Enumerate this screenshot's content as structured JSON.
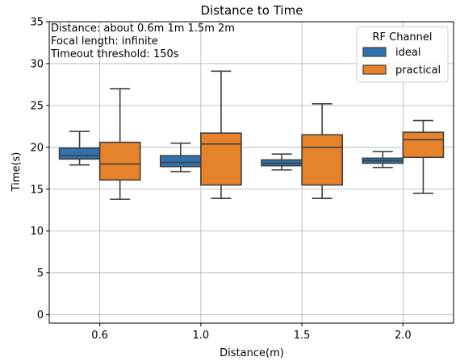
{
  "chart_data": {
    "type": "box",
    "title": "Distance to Time",
    "xlabel": "Distance(m)",
    "ylabel": "Time(s)",
    "categories": [
      "0.6",
      "1.0",
      "1.5",
      "2.0"
    ],
    "ylim": [
      -1,
      35
    ],
    "yticks": [
      0,
      5,
      10,
      15,
      20,
      25,
      30,
      35
    ],
    "grid": true,
    "annotations": [
      "Distance: about 0.6m 1m 1.5m 2m",
      "Focal length: infinite",
      "Timeout threshold: 150s"
    ],
    "legend": {
      "title": "RF Channel",
      "position": "top-right"
    },
    "series": [
      {
        "name": "ideal",
        "color": "#2f72ad",
        "boxes": [
          {
            "whisker_low": 17.9,
            "q1": 18.6,
            "median": 19.0,
            "q3": 19.9,
            "whisker_high": 21.9
          },
          {
            "whisker_low": 17.1,
            "q1": 17.7,
            "median": 18.2,
            "q3": 19.0,
            "whisker_high": 20.5
          },
          {
            "whisker_low": 17.3,
            "q1": 17.8,
            "median": 18.1,
            "q3": 18.5,
            "whisker_high": 19.2
          },
          {
            "whisker_low": 17.6,
            "q1": 18.1,
            "median": 18.4,
            "q3": 18.7,
            "whisker_high": 19.5
          }
        ]
      },
      {
        "name": "practical",
        "color": "#e6832a",
        "boxes": [
          {
            "whisker_low": 13.8,
            "q1": 16.1,
            "median": 18.0,
            "q3": 20.6,
            "whisker_high": 27.0
          },
          {
            "whisker_low": 13.9,
            "q1": 15.5,
            "median": 20.4,
            "q3": 21.7,
            "whisker_high": 29.1
          },
          {
            "whisker_low": 13.9,
            "q1": 15.5,
            "median": 20.0,
            "q3": 21.5,
            "whisker_high": 25.2
          },
          {
            "whisker_low": 14.5,
            "q1": 18.8,
            "median": 20.9,
            "q3": 21.8,
            "whisker_high": 23.2
          }
        ]
      }
    ]
  }
}
